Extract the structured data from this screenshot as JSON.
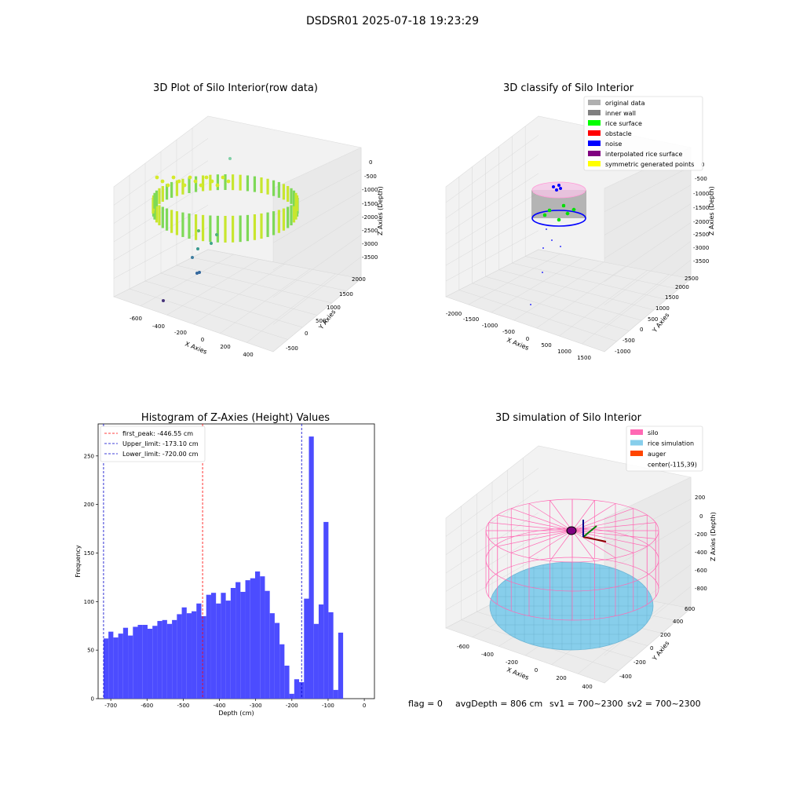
{
  "figure": {
    "suptitle": "DSDSR01 2025-07-18 19:23:29",
    "footer": {
      "flag": "flag = 0",
      "avg_depth": "avgDepth = 806 cm",
      "sv1": "sv1 = 700~2300",
      "sv2": "sv2 = 700~2300"
    }
  },
  "chart_data": [
    {
      "id": "raw",
      "type": "scatter",
      "title": "3D Plot of Silo Interior(row data)",
      "xlabel": "X Axies",
      "ylabel": "Y Axies",
      "zlabel": "Z Axies (Depth)",
      "x_ticks": [
        "-600",
        "-400",
        "-200",
        "0",
        "200",
        "400"
      ],
      "y_ticks": [
        "-500",
        "0",
        "500",
        "1000",
        "1500",
        "2000"
      ],
      "z_ticks": [
        "0",
        "-500",
        "-1000",
        "-1500",
        "-2000",
        "-2500",
        "-3000",
        "-3500"
      ]
    },
    {
      "id": "classify",
      "type": "scatter",
      "title": "3D classify of Silo Interior",
      "xlabel": "X Axies",
      "ylabel": "Y Axies",
      "zlabel": "Z Axies (Depth)",
      "x_ticks": [
        "-2000",
        "-1500",
        "-1000",
        "-500",
        "0",
        "500",
        "1000",
        "1500"
      ],
      "y_ticks": [
        "-1000",
        "-500",
        "0",
        "500",
        "1000",
        "1500",
        "2000",
        "2500"
      ],
      "z_ticks": [
        "0",
        "-500",
        "-1000",
        "-1500",
        "-2000",
        "-2500",
        "-3000",
        "-3500"
      ],
      "legend": [
        {
          "label": "original data",
          "color": "#b0b0b0"
        },
        {
          "label": "inner wall",
          "color": "#808080"
        },
        {
          "label": "rice surface",
          "color": "#00ff00"
        },
        {
          "label": "obstacle",
          "color": "#ff0000"
        },
        {
          "label": "noise",
          "color": "#0000ff"
        },
        {
          "label": "interpolated rice surface",
          "color": "#800080"
        },
        {
          "label": "symmetric generated points",
          "color": "#ffff00"
        }
      ]
    },
    {
      "id": "histogram",
      "type": "bar",
      "title": "Histogram of Z-Axies (Height) Values",
      "xlabel": "Depth (cm)",
      "ylabel": "Frequency",
      "xlim": [
        -735,
        28
      ],
      "ylim": [
        0,
        283
      ],
      "x_ticks": [
        -700,
        -600,
        -500,
        -400,
        -300,
        -200,
        -100,
        0
      ],
      "y_ticks": [
        0,
        50,
        100,
        150,
        200,
        250
      ],
      "bin_start": -720,
      "bin_width": 13.5,
      "bar_color": "#4c4cff",
      "values": [
        62,
        69,
        63,
        67,
        73,
        65,
        74,
        76,
        76,
        72,
        75,
        80,
        81,
        77,
        81,
        87,
        94,
        88,
        90,
        98,
        85,
        107,
        109,
        98,
        109,
        101,
        114,
        120,
        110,
        122,
        124,
        131,
        126,
        111,
        88,
        78,
        56,
        34,
        5,
        20,
        17,
        103,
        270,
        77,
        97,
        182,
        89,
        9,
        68
      ],
      "lines": [
        {
          "label": "first_peak: -446.55 cm",
          "x": -446.55,
          "color": "#ff0000"
        },
        {
          "label": "Upper_limit: -173.10 cm",
          "x": -173.1,
          "color": "#0000cc"
        },
        {
          "label": "Lower_limit: -720.00 cm",
          "x": -720.0,
          "color": "#0000cc"
        }
      ]
    },
    {
      "id": "simulation",
      "type": "scatter",
      "title": "3D simulation of Silo Interior",
      "xlabel": "X Axies",
      "ylabel": "Y Axies",
      "zlabel": "Z Axies (Depth)",
      "x_ticks": [
        "-600",
        "-400",
        "-200",
        "0",
        "200",
        "400"
      ],
      "y_ticks": [
        "-400",
        "-200",
        "0",
        "200",
        "400",
        "600"
      ],
      "z_ticks": [
        "200",
        "0",
        "-200",
        "-400",
        "-600",
        "-800"
      ],
      "legend": [
        {
          "label": "silo",
          "color": "#ff69b4"
        },
        {
          "label": "rice simulation",
          "color": "#87ceeb"
        },
        {
          "label": "auger",
          "color": "#ff4500"
        },
        {
          "label": "center(-115,39)",
          "color": "none"
        }
      ]
    }
  ]
}
